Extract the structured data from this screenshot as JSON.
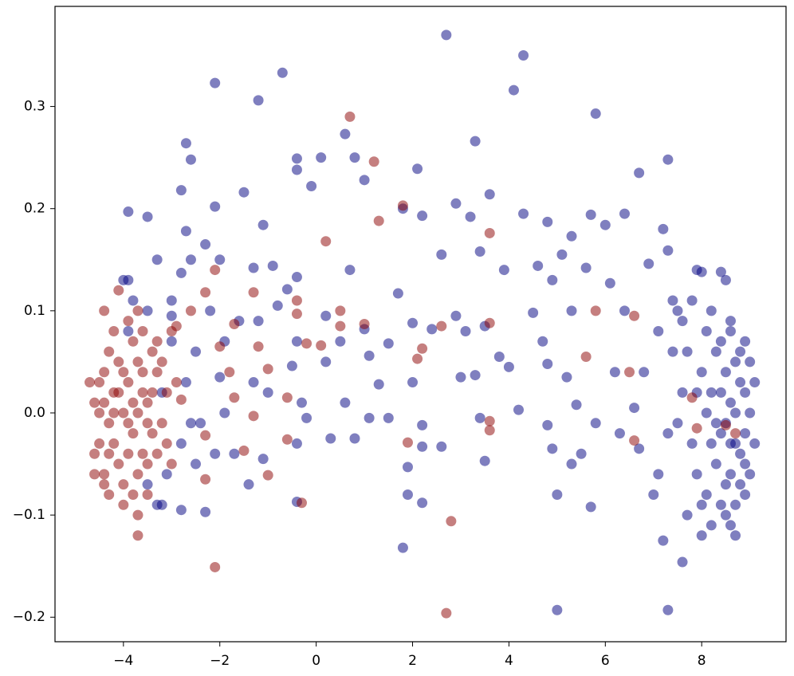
{
  "chart_data": {
    "type": "scatter",
    "xlim": [
      -5.42,
      9.75
    ],
    "ylim": [
      -0.224,
      0.398
    ],
    "xticks": [
      {
        "value": -4,
        "label": "−4"
      },
      {
        "value": -2,
        "label": "−2"
      },
      0,
      2,
      4,
      6,
      8
    ],
    "yticks": [
      {
        "value": -0.2,
        "label": "−0.2"
      },
      {
        "value": -0.1,
        "label": "−0.1"
      },
      {
        "value": 0,
        "label": "0.0"
      },
      0.1,
      0.2,
      0.3
    ],
    "opacity": 0.5,
    "series": [
      {
        "color": "#000080",
        "x": [
          2.7,
          4.3,
          -0.7,
          -2.1,
          4.1,
          -1.2,
          5.8,
          3.3,
          -2.7,
          0.6,
          -2.6,
          -0.4,
          0.1,
          0.8,
          7.3,
          2.1,
          6.7,
          -0.4,
          1.0,
          -0.1,
          -2.8,
          -1.5,
          3.6,
          2.9,
          -2.1,
          -3.9,
          4.3,
          5.7,
          6.4,
          -3.5,
          2.2,
          3.2,
          -1.1,
          6.0,
          7.2,
          -2.7,
          1.8,
          4.8,
          -2.3,
          5.3,
          7.3,
          3.4,
          2.6,
          -3.3,
          -2.6,
          5.1,
          -2.0,
          4.6,
          6.9,
          -1.3,
          0.7,
          8.0,
          8.4,
          -3.9,
          -2.8,
          -0.9,
          1.7,
          3.9,
          5.6,
          -0.4,
          4.9,
          6.1,
          -0.6,
          2.0,
          2.9,
          3.5,
          4.5,
          -1.2,
          -0.8,
          -2.2,
          1.0,
          0.2,
          2.4,
          3.1,
          -1.6,
          4.7,
          -3.0,
          5.3,
          6.4,
          7.1,
          3.8,
          1.1,
          1.5,
          -0.4,
          0.5,
          -2.5,
          -1.9,
          4.0,
          4.8,
          3.3,
          2.0,
          -1.3,
          0.2,
          -0.5,
          -2.0,
          5.2,
          6.2,
          6.8,
          1.3,
          3.0,
          -0.3,
          0.6,
          -1.0,
          4.2,
          5.4,
          6.6,
          1.1,
          1.5,
          2.2,
          -0.2,
          -1.9,
          -2.4,
          3.4,
          4.8,
          5.8,
          6.3,
          7.3,
          2.2,
          2.6,
          0.3,
          0.8,
          -0.4,
          -1.1,
          -1.7,
          4.9,
          5.3,
          5.5,
          6.7,
          7.1,
          1.9,
          3.5,
          -2.5,
          -2.1,
          -1.4,
          1.9,
          2.2,
          5.0,
          5.7,
          7.0,
          -2.3,
          -0.4,
          1.8,
          7.2,
          7.6,
          5.0,
          7.3,
          -3.3,
          -2.8,
          8.6,
          8.8,
          8.5,
          8.9,
          8.7,
          8.4,
          8.8,
          8.6,
          8.9,
          8.5,
          8.7,
          9.0,
          9.0,
          9.0,
          8.3,
          8.2,
          8.3,
          8.1,
          8.0,
          8.1,
          8.6,
          8.7,
          8.8,
          8.6,
          8.5,
          8.9,
          8.7,
          8.6,
          8.8,
          8.5,
          8.4,
          8.2,
          8.0,
          7.9,
          7.8,
          7.9,
          7.7,
          7.6,
          7.8,
          8.1,
          8.4,
          9.1,
          9.1,
          8.9,
          8.4,
          8.3,
          8.2,
          8.7,
          8.6,
          8.0,
          7.5,
          7.4,
          7.6,
          7.5,
          7.7,
          8.2,
          8.5,
          7.9,
          7.4,
          8.9,
          -4.0,
          -3.8,
          -3.5,
          -3.0,
          -3.2,
          -2.8,
          -3.1,
          -3.5,
          -2.7,
          -2.6,
          -3.9,
          -3.0,
          -3.2
        ],
        "values": [
          0.37,
          0.35,
          0.333,
          0.323,
          0.316,
          0.306,
          0.293,
          0.266,
          0.264,
          0.273,
          0.248,
          0.249,
          0.25,
          0.25,
          0.248,
          0.239,
          0.235,
          0.238,
          0.228,
          0.222,
          0.218,
          0.216,
          0.214,
          0.205,
          0.202,
          0.197,
          0.195,
          0.194,
          0.195,
          0.192,
          0.193,
          0.192,
          0.184,
          0.184,
          0.18,
          0.178,
          0.2,
          0.187,
          0.165,
          0.173,
          0.159,
          0.158,
          0.155,
          0.15,
          0.15,
          0.155,
          0.15,
          0.144,
          0.146,
          0.142,
          0.14,
          0.138,
          0.138,
          0.13,
          0.137,
          0.144,
          0.117,
          0.14,
          0.142,
          0.133,
          0.13,
          0.127,
          0.121,
          0.088,
          0.095,
          0.085,
          0.098,
          0.09,
          0.105,
          0.1,
          0.082,
          0.095,
          0.082,
          0.08,
          0.09,
          0.07,
          0.095,
          0.1,
          0.1,
          0.08,
          0.055,
          0.056,
          0.068,
          0.07,
          0.07,
          0.06,
          0.07,
          0.045,
          0.048,
          0.037,
          0.03,
          0.03,
          0.05,
          0.046,
          0.035,
          0.035,
          0.04,
          0.04,
          0.028,
          0.035,
          0.01,
          0.01,
          0.02,
          0.003,
          0.008,
          0.005,
          -0.005,
          -0.005,
          -0.012,
          -0.005,
          0,
          -0.01,
          -0.005,
          -0.012,
          -0.01,
          -0.02,
          -0.02,
          -0.033,
          -0.033,
          -0.025,
          -0.025,
          -0.03,
          -0.045,
          -0.04,
          -0.035,
          -0.05,
          -0.04,
          -0.035,
          -0.06,
          -0.053,
          -0.047,
          -0.05,
          -0.04,
          -0.07,
          -0.08,
          -0.088,
          -0.08,
          -0.092,
          -0.08,
          -0.097,
          -0.087,
          -0.132,
          -0.125,
          -0.146,
          -0.193,
          -0.193,
          -0.09,
          -0.095,
          0.08,
          0.06,
          0.04,
          0.02,
          0,
          -0.02,
          -0.04,
          -0.06,
          -0.08,
          -0.1,
          -0.12,
          -0.06,
          0,
          0.05,
          0.06,
          0.02,
          -0.05,
          -0.08,
          0.04,
          0,
          0.09,
          0.05,
          0.03,
          0.01,
          -0.01,
          -0.02,
          -0.03,
          -0.03,
          -0.07,
          -0.07,
          -0.09,
          -0.11,
          -0.12,
          -0.06,
          -0.03,
          0.02,
          0.06,
          0.09,
          0.11,
          0.08,
          0.07,
          0.03,
          -0.03,
          0.07,
          0.02,
          -0.01,
          -0.03,
          -0.09,
          -0.11,
          -0.09,
          0.1,
          0.06,
          0.02,
          -0.01,
          -0.1,
          0.1,
          0.13,
          0.14,
          0.11,
          -0.05,
          0.13,
          0.11,
          0.1,
          0.07,
          0.02,
          -0.03,
          -0.06,
          -0.07,
          0.03,
          -0.01,
          0.08,
          0.11,
          -0.09
        ]
      },
      {
        "color": "#8b0000",
        "x": [
          -4.6,
          -4.5,
          -4.4,
          -4.3,
          -4.2,
          -4.1,
          -4.0,
          -3.9,
          -3.8,
          -3.7,
          -3.6,
          -3.5,
          -3.4,
          -3.3,
          -3.2,
          -3.1,
          -4.6,
          -4.5,
          -4.4,
          -4.3,
          -4.2,
          -4.1,
          -4.0,
          -3.9,
          -3.8,
          -3.7,
          -3.6,
          -3.5,
          -3.4,
          -3.3,
          -3.2,
          -3.1,
          -4.5,
          -4.4,
          -4.3,
          -4.2,
          -4.1,
          -4.0,
          -3.9,
          -3.8,
          -3.7,
          -3.6,
          -3.5,
          -3.4,
          -4.3,
          -4.0,
          -3.8,
          -4.2,
          -3.9,
          -3.6,
          -3.3,
          -4.4,
          -4.1,
          -3.7,
          -3.0,
          -4.7,
          -4.6,
          -3.0,
          -2.9,
          -4.4,
          -3.5,
          0.7,
          1.2,
          1.8,
          1.3,
          3.6,
          0.2,
          -2.1,
          -2.3,
          -1.3,
          -0.4,
          0.5,
          -0.4,
          1.0,
          0.5,
          3.6,
          2.6,
          5.8,
          6.6,
          -2.6,
          -2.9,
          -1.7,
          -2.0,
          -1.2,
          -0.2,
          0.1,
          2.2,
          2.1,
          5.6,
          6.5,
          -1.8,
          -1.0,
          -1.7,
          -0.6,
          -2.8,
          -1.3,
          3.6,
          3.6,
          -2.3,
          -0.6,
          1.9,
          6.6,
          -1.5,
          -1.0,
          -2.3,
          -0.3,
          -3.7,
          -3.7,
          2.8,
          -2.1,
          2.7,
          7.8,
          8.7,
          7.9,
          8.5
        ],
        "values": [
          0.01,
          -0.03,
          0.04,
          -0.01,
          0.02,
          -0.05,
          0,
          0.03,
          -0.02,
          0.05,
          -0.04,
          0.01,
          -0.02,
          0.04,
          -0.01,
          0.02,
          -0.04,
          0.03,
          -0.06,
          0.06,
          -0.03,
          0.05,
          -0.07,
          -0.04,
          0.07,
          -0.06,
          0.04,
          -0.05,
          0.06,
          -0.04,
          0.05,
          -0.03,
          0,
          0.01,
          -0.04,
          0,
          0.02,
          0.04,
          -0.01,
          0.01,
          0,
          0.02,
          -0.01,
          0.02,
          -0.08,
          -0.09,
          -0.08,
          0.08,
          0.09,
          0.08,
          0.07,
          0.1,
          0.12,
          0.1,
          0.08,
          0.03,
          -0.06,
          -0.05,
          0.03,
          -0.07,
          -0.08,
          0.29,
          0.246,
          0.203,
          0.188,
          0.176,
          0.168,
          0.14,
          0.118,
          0.118,
          0.11,
          0.1,
          0.097,
          0.087,
          0.085,
          0.088,
          0.085,
          0.1,
          0.095,
          0.1,
          0.085,
          0.087,
          0.065,
          0.065,
          0.068,
          0.066,
          0.063,
          0.053,
          0.055,
          0.04,
          0.04,
          0.043,
          0.015,
          0.015,
          0.013,
          -0.003,
          -0.008,
          -0.017,
          -0.022,
          -0.026,
          -0.029,
          -0.027,
          -0.037,
          -0.061,
          -0.065,
          -0.088,
          -0.1,
          -0.12,
          -0.106,
          -0.151,
          -0.196,
          0.015,
          -0.02,
          -0.015,
          -0.012
        ]
      }
    ]
  }
}
